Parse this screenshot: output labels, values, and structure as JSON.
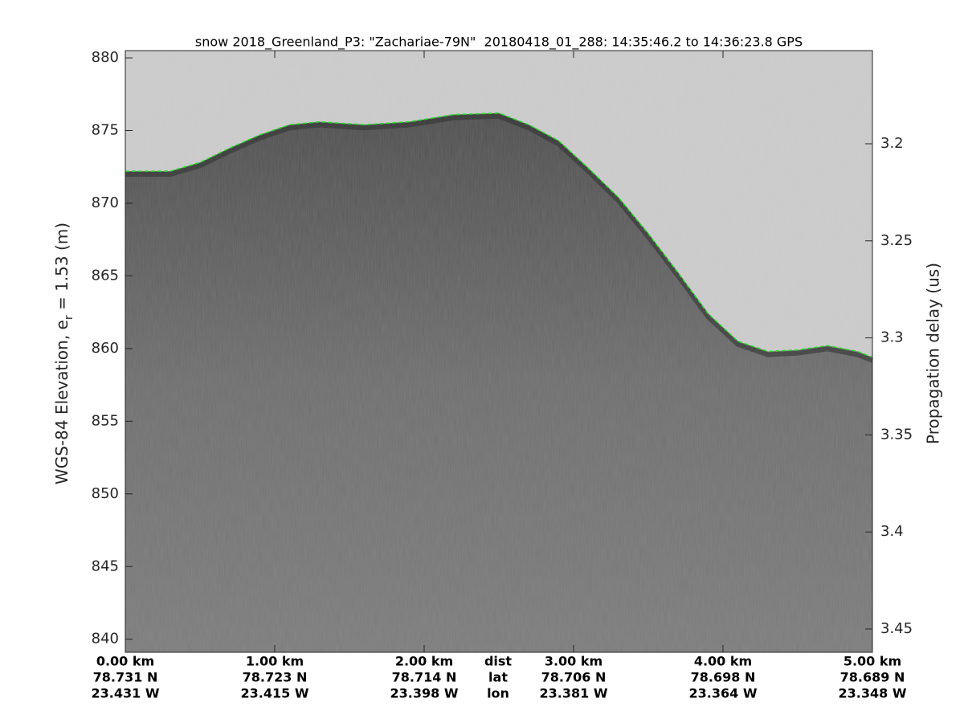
{
  "chart_data": {
    "type": "echogram",
    "title": "snow 2018_Greenland_P3: \"Zachariae-79N\"  20180418_01_288: 14:35:46.2 to 14:36:23.8 GPS",
    "ylabel_parts": [
      "WGS-84 Elevation, e",
      "r",
      " = 1.53 (m)"
    ],
    "y2label": "Propagation delay (us)",
    "xlim": [
      0,
      5
    ],
    "xticks": [
      {
        "value": 0,
        "label": "0.00 km"
      },
      {
        "value": 1,
        "label": "1.00 km"
      },
      {
        "value": 2,
        "label": "2.00 km"
      },
      {
        "value": 3,
        "label": "3.00 km"
      },
      {
        "value": 4,
        "label": "4.00 km"
      },
      {
        "value": 5,
        "label": "5.00 km"
      }
    ],
    "lat": [
      "78.731 N",
      "78.723 N",
      "78.714 N",
      "78.706 N",
      "78.698 N",
      "78.689 N"
    ],
    "lon": [
      "23.431 W",
      "23.415 W",
      "23.398 W",
      "23.381 W",
      "23.364 W",
      "23.348 W"
    ],
    "row_labels": [
      "dist",
      "lat",
      "lon"
    ],
    "ylim": [
      839.1,
      880.5
    ],
    "yticks": [
      840,
      845,
      850,
      855,
      860,
      865,
      870,
      875,
      880
    ],
    "y2lim": [
      3.462,
      3.152
    ],
    "y2ticks": [
      3.2,
      3.25,
      3.3,
      3.35,
      3.4,
      3.45
    ],
    "series": [
      {
        "name": "surface",
        "color": "#22dd22",
        "x": [
          0,
          0.3,
          0.5,
          0.7,
          0.9,
          1.1,
          1.3,
          1.6,
          1.9,
          2.2,
          2.5,
          2.7,
          2.9,
          3.1,
          3.3,
          3.5,
          3.7,
          3.9,
          4.1,
          4.3,
          4.5,
          4.7,
          4.9,
          5.0
        ],
        "values": [
          872.2,
          872.2,
          872.8,
          873.8,
          874.7,
          875.4,
          875.6,
          875.4,
          875.6,
          876.1,
          876.2,
          875.4,
          874.3,
          872.4,
          870.4,
          867.9,
          865.2,
          862.4,
          860.5,
          859.8,
          859.9,
          860.2,
          859.8,
          859.4
        ]
      }
    ]
  }
}
